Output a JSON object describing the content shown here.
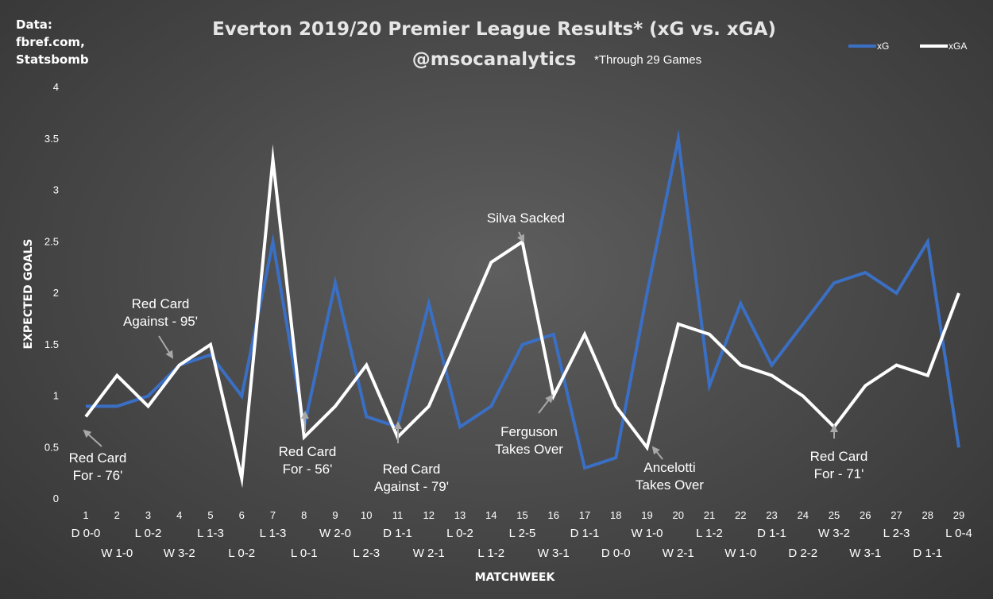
{
  "source": [
    "Data:",
    "fbref.com,",
    "Statsbomb"
  ],
  "title_line1": "Everton 2019/20 Premier League Results* (xG vs. xGA)",
  "title_line2": "@msocanalytics",
  "title_note": "*Through 29 Games",
  "chart_data": {
    "type": "line",
    "xlabel": "MATCHWEEK",
    "ylabel": "EXPECTED GOALS",
    "ylim": [
      0,
      4
    ],
    "yticks": [
      "0",
      "0.5",
      "1",
      "1.5",
      "2",
      "2.5",
      "3",
      "3.5",
      "4"
    ],
    "grid": false,
    "legend_position": "top-right",
    "categories": [
      "1",
      "2",
      "3",
      "4",
      "5",
      "6",
      "7",
      "8",
      "9",
      "10",
      "11",
      "12",
      "13",
      "14",
      "15",
      "16",
      "17",
      "18",
      "19",
      "20",
      "21",
      "22",
      "23",
      "24",
      "25",
      "26",
      "27",
      "28",
      "29"
    ],
    "results": [
      "D 0-0",
      "W 1-0",
      "L 0-2",
      "W 3-2",
      "L 1-3",
      "L 0-2",
      "L 1-3",
      "L 0-1",
      "W 2-0",
      "L 2-3",
      "D 1-1",
      "W 2-1",
      "L 0-2",
      "L 1-2",
      "L 2-5",
      "W 3-1",
      "D 1-1",
      "D 0-0",
      "W 1-0",
      "W 2-1",
      "L 1-2",
      "W 1-0",
      "D 1-1",
      "D 2-2",
      "W 3-2",
      "W 3-1",
      "L 2-3",
      "D 1-1",
      "L 0-4"
    ],
    "series": [
      {
        "name": "xG",
        "color": "#3a6fc4",
        "values": [
          0.9,
          0.9,
          1.0,
          1.3,
          1.4,
          1.0,
          2.5,
          0.7,
          2.1,
          0.8,
          0.7,
          1.9,
          0.7,
          0.9,
          1.5,
          1.6,
          0.3,
          0.4,
          2.0,
          3.5,
          1.1,
          1.9,
          1.3,
          1.7,
          2.1,
          2.2,
          2.0,
          2.5,
          0.5
        ]
      },
      {
        "name": "xGA",
        "color": "#ffffff",
        "values": [
          0.8,
          1.2,
          0.9,
          1.3,
          1.5,
          0.2,
          3.3,
          0.6,
          0.9,
          1.3,
          0.6,
          0.9,
          1.6,
          2.3,
          2.5,
          1.0,
          1.6,
          0.9,
          0.5,
          1.7,
          1.6,
          1.3,
          1.2,
          1.0,
          0.7,
          1.1,
          1.3,
          1.2,
          2.0
        ]
      }
    ],
    "annotations": [
      {
        "lines": [
          "Red Card",
          "For - 76'"
        ],
        "matchweek": 1
      },
      {
        "lines": [
          "Red Card",
          "Against - 95'"
        ],
        "matchweek": 4
      },
      {
        "lines": [
          "Red Card",
          "For - 56'"
        ],
        "matchweek": 8
      },
      {
        "lines": [
          "Red Card",
          "Against - 79'"
        ],
        "matchweek": 11
      },
      {
        "lines": [
          "Silva Sacked"
        ],
        "matchweek": 15
      },
      {
        "lines": [
          "Ferguson",
          "Takes Over"
        ],
        "matchweek": 16
      },
      {
        "lines": [
          "Ancelotti",
          "Takes Over"
        ],
        "matchweek": 19
      },
      {
        "lines": [
          "Red Card",
          "For - 71'"
        ],
        "matchweek": 25
      }
    ]
  }
}
